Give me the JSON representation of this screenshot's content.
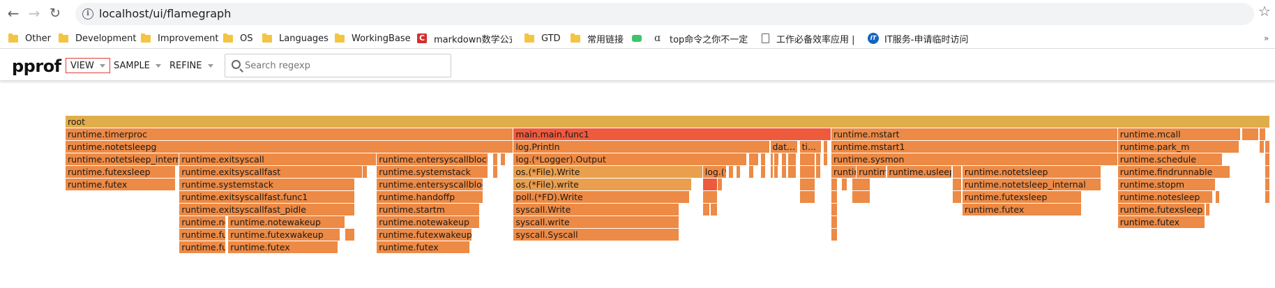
{
  "browser": {
    "url": "localhost/ui/flamegraph",
    "bookmarks": [
      {
        "label": "Other",
        "icon": "folder-icon"
      },
      {
        "label": "Development",
        "icon": "folder-icon"
      },
      {
        "label": "Improvement",
        "icon": "folder-icon"
      },
      {
        "label": "OS",
        "icon": "folder-icon"
      },
      {
        "label": "Languages",
        "icon": "folder-icon"
      },
      {
        "label": "WorkingBase",
        "icon": "folder-icon"
      },
      {
        "label": "markdown数学公式",
        "icon": "c-logo-icon"
      },
      {
        "label": "GTD",
        "icon": "folder-icon"
      },
      {
        "label": "常用链接",
        "icon": "folder-icon"
      },
      {
        "label": "",
        "icon": "green-chat-icon"
      },
      {
        "label": "top命令之你不一定",
        "icon": "a-logo-icon"
      },
      {
        "label": "工作必备效率应用 | ",
        "icon": "document-icon"
      },
      {
        "label": "IT服务-申请临时访问",
        "icon": "it-logo-icon"
      }
    ]
  },
  "header": {
    "title": "pprof",
    "menus": [
      "VIEW",
      "SAMPLE",
      "REFINE"
    ],
    "search_placeholder": "Search regexp"
  },
  "colors": {
    "root": "#e0ad4b",
    "hot": "#ee5a3c",
    "warm1": "#ed8a45",
    "warm2": "#ee9448",
    "warm3": "#e99f4e"
  },
  "flamegraph": {
    "frames": [
      {
        "name": "root",
        "level": 0,
        "start": 0.0,
        "end": 1.0,
        "color": "#e0ad4b"
      },
      {
        "name": "runtime.timerproc",
        "level": 1,
        "start": 0.0,
        "end": 0.3717,
        "color": "#ed8a45"
      },
      {
        "name": "runtime.notetsleepg",
        "level": 2,
        "start": 0.0,
        "end": 0.3717,
        "color": "#ed8a45"
      },
      {
        "name": "runtime.notetsleep_internal",
        "level": 3,
        "start": 0.0,
        "end": 0.0946,
        "color": "#ed8a45"
      },
      {
        "name": "runtime.futexsleep",
        "level": 4,
        "start": 0.0,
        "end": 0.0912,
        "color": "#ed8a45"
      },
      {
        "name": "runtime.futex",
        "level": 5,
        "start": 0.0,
        "end": 0.0912,
        "color": "#ed8a45"
      },
      {
        "name": "runtime.exitsyscall",
        "level": 3,
        "start": 0.0946,
        "end": 0.2584,
        "color": "#ed8a45"
      },
      {
        "name": "runtime.exitsyscallfast",
        "level": 4,
        "start": 0.0946,
        "end": 0.2466,
        "color": "#ed8a45"
      },
      {
        "name": "",
        "level": 4,
        "start": 0.2466,
        "end": 0.2507,
        "color": "#ed8a45"
      },
      {
        "name": "runtime.systemstack",
        "level": 5,
        "start": 0.0946,
        "end": 0.2405,
        "color": "#ed8a45"
      },
      {
        "name": "runtime.exitsyscallfast.func1",
        "level": 6,
        "start": 0.0946,
        "end": 0.2405,
        "color": "#ed8a45"
      },
      {
        "name": "runtime.exitsyscallfast_pidle",
        "level": 7,
        "start": 0.0946,
        "end": 0.2405,
        "color": "#ed8a45"
      },
      {
        "name": "runtime.notewakeup",
        "level": 8,
        "start": 0.0946,
        "end": 0.1331,
        "color": "#ed8a45"
      },
      {
        "name": "runtime.futexwakeup",
        "level": 9,
        "start": 0.0946,
        "end": 0.1331,
        "color": "#ed8a45"
      },
      {
        "name": "runtime.futex",
        "level": 10,
        "start": 0.0946,
        "end": 0.1331,
        "color": "#ed8a45"
      },
      {
        "name": "runtime.notewakeup",
        "level": 8,
        "start": 0.1351,
        "end": 0.2324,
        "color": "#ed8a45"
      },
      {
        "name": "runtime.futexwakeup",
        "level": 9,
        "start": 0.1351,
        "end": 0.2284,
        "color": "#ed8a45"
      },
      {
        "name": "",
        "level": 9,
        "start": 0.2324,
        "end": 0.2405,
        "color": "#ed8a45"
      },
      {
        "name": "runtime.futex",
        "level": 10,
        "start": 0.1351,
        "end": 0.2264,
        "color": "#ed8a45"
      },
      {
        "name": "runtime.entersyscallblock",
        "level": 3,
        "start": 0.2584,
        "end": 0.3507,
        "color": "#ed8a45"
      },
      {
        "name": "runtime.systemstack",
        "level": 4,
        "start": 0.2584,
        "end": 0.3507,
        "color": "#ed8a45"
      },
      {
        "name": "runtime.entersyscallblock_handoff",
        "level": 5,
        "start": 0.2584,
        "end": 0.3469,
        "color": "#ed8a45"
      },
      {
        "name": "runtime.handoffp",
        "level": 6,
        "start": 0.2584,
        "end": 0.3469,
        "color": "#ed8a45"
      },
      {
        "name": "runtime.startm",
        "level": 7,
        "start": 0.2584,
        "end": 0.3439,
        "color": "#ed8a45"
      },
      {
        "name": "runtime.notewakeup",
        "level": 8,
        "start": 0.2584,
        "end": 0.3439,
        "color": "#ed8a45"
      },
      {
        "name": "runtime.futexwakeup",
        "level": 9,
        "start": 0.2584,
        "end": 0.3378,
        "color": "#ed8a45"
      },
      {
        "name": "runtime.futex",
        "level": 10,
        "start": 0.2584,
        "end": 0.3358,
        "color": "#ed8a45"
      },
      {
        "name": "",
        "level": 3,
        "start": 0.3547,
        "end": 0.3588,
        "color": "#ed8a45"
      },
      {
        "name": "",
        "level": 4,
        "start": 0.3547,
        "end": 0.3588,
        "color": "#ed8a45"
      },
      {
        "name": "",
        "level": 3,
        "start": 0.3615,
        "end": 0.3656,
        "color": "#ed8a45"
      },
      {
        "name": "",
        "level": 2,
        "start": 0.3628,
        "end": 0.3669,
        "color": "#ed8a45"
      },
      {
        "name": "main.main.func1",
        "level": 1,
        "start": 0.372,
        "end": 0.6358,
        "color": "#ee5a3c"
      },
      {
        "name": "log.Println",
        "level": 2,
        "start": 0.372,
        "end": 0.5851,
        "color": "#ed8a45"
      },
      {
        "name": "log.(*Logger).Output",
        "level": 3,
        "start": 0.372,
        "end": 0.5655,
        "color": "#ed8a45"
      },
      {
        "name": "os.(*File).Write",
        "level": 4,
        "start": 0.372,
        "end": 0.5291,
        "color": "#e99f4e"
      },
      {
        "name": "os.(*File).write",
        "level": 5,
        "start": 0.372,
        "end": 0.5203,
        "color": "#e99f4e"
      },
      {
        "name": "poll.(*FD).Write",
        "level": 6,
        "start": 0.372,
        "end": 0.5182,
        "color": "#ed8a45"
      },
      {
        "name": "syscall.Write",
        "level": 7,
        "start": 0.372,
        "end": 0.5095,
        "color": "#ed8a45"
      },
      {
        "name": "syscall.write",
        "level": 8,
        "start": 0.372,
        "end": 0.5095,
        "color": "#ed8a45"
      },
      {
        "name": "syscall.Syscall",
        "level": 9,
        "start": 0.372,
        "end": 0.5095,
        "color": "#ed8a45"
      },
      {
        "name": "log.(*Logger).formatHeader",
        "level": 4,
        "start": 0.5291,
        "end": 0.5487,
        "color": "#ed8a45"
      },
      {
        "name": "",
        "level": 4,
        "start": 0.5507,
        "end": 0.5547,
        "color": "#ed8a45"
      },
      {
        "name": "",
        "level": 4,
        "start": 0.5568,
        "end": 0.5608,
        "color": "#ed8a45"
      },
      {
        "name": "",
        "level": 5,
        "start": 0.5291,
        "end": 0.5412,
        "color": "#ee5a3c"
      },
      {
        "name": "",
        "level": 5,
        "start": 0.5412,
        "end": 0.5453,
        "color": "#ed8a45"
      },
      {
        "name": "",
        "level": 6,
        "start": 0.5291,
        "end": 0.5412,
        "color": "#ed8a45"
      },
      {
        "name": "",
        "level": 7,
        "start": 0.5291,
        "end": 0.5351,
        "color": "#ed8a45"
      },
      {
        "name": "",
        "level": 7,
        "start": 0.5358,
        "end": 0.5412,
        "color": "#ed8a45"
      },
      {
        "name": "",
        "level": 3,
        "start": 0.5676,
        "end": 0.5757,
        "color": "#ed8a45"
      },
      {
        "name": "",
        "level": 4,
        "start": 0.5676,
        "end": 0.5716,
        "color": "#ed8a45"
      },
      {
        "name": "",
        "level": 3,
        "start": 0.577,
        "end": 0.5811,
        "color": "#ed8a45"
      },
      {
        "name": "",
        "level": 4,
        "start": 0.577,
        "end": 0.5811,
        "color": "#ed8a45"
      },
      {
        "name": "dat...",
        "level": 2,
        "start": 0.5851,
        "end": 0.6081,
        "color": "#ed8a45"
      },
      {
        "name": "",
        "level": 3,
        "start": 0.5851,
        "end": 0.5878,
        "color": "#ed8a45"
      },
      {
        "name": "",
        "level": 3,
        "start": 0.5885,
        "end": 0.5926,
        "color": "#ed8a45"
      },
      {
        "name": "",
        "level": 3,
        "start": 0.5946,
        "end": 0.5986,
        "color": "#ed8a45"
      },
      {
        "name": "",
        "level": 3,
        "start": 0.6,
        "end": 0.6068,
        "color": "#ed8a45"
      },
      {
        "name": "",
        "level": 4,
        "start": 0.5851,
        "end": 0.5878,
        "color": "#ed8a45"
      },
      {
        "name": "",
        "level": 4,
        "start": 0.5885,
        "end": 0.5919,
        "color": "#ed8a45"
      },
      {
        "name": "",
        "level": 4,
        "start": 0.5946,
        "end": 0.5986,
        "color": "#ed8a45"
      },
      {
        "name": "",
        "level": 4,
        "start": 0.6,
        "end": 0.6068,
        "color": "#ed8a45"
      },
      {
        "name": "ti...",
        "level": 2,
        "start": 0.6095,
        "end": 0.6277,
        "color": "#ed8a45"
      },
      {
        "name": "",
        "level": 3,
        "start": 0.6095,
        "end": 0.6223,
        "color": "#ed8a45"
      },
      {
        "name": "",
        "level": 3,
        "start": 0.623,
        "end": 0.627,
        "color": "#ed8a45"
      },
      {
        "name": "",
        "level": 4,
        "start": 0.6095,
        "end": 0.6223,
        "color": "#ed8a45"
      },
      {
        "name": "",
        "level": 4,
        "start": 0.623,
        "end": 0.627,
        "color": "#ed8a45"
      },
      {
        "name": "",
        "level": 5,
        "start": 0.6095,
        "end": 0.6223,
        "color": "#ed8a45"
      },
      {
        "name": "",
        "level": 6,
        "start": 0.6095,
        "end": 0.6223,
        "color": "#ed8a45"
      },
      {
        "name": "",
        "level": 2,
        "start": 0.6291,
        "end": 0.6331,
        "color": "#ed8a45"
      },
      {
        "name": "",
        "level": 3,
        "start": 0.6291,
        "end": 0.6331,
        "color": "#ed8a45"
      },
      {
        "name": "runtime.mstart",
        "level": 1,
        "start": 0.6358,
        "end": 0.8736,
        "color": "#ed8a45"
      },
      {
        "name": "runtime.mstart1",
        "level": 2,
        "start": 0.6358,
        "end": 0.8736,
        "color": "#ed8a45"
      },
      {
        "name": "runtime.sysmon",
        "level": 3,
        "start": 0.6358,
        "end": 0.8736,
        "color": "#ed8a45"
      },
      {
        "name": "runtime.usleep",
        "level": 4,
        "start": 0.6358,
        "end": 0.6568,
        "color": "#ed8a45"
      },
      {
        "name": "runtime.nanotime",
        "level": 4,
        "start": 0.6568,
        "end": 0.6818,
        "color": "#ed8a45"
      },
      {
        "name": "runtime.usleep",
        "level": 4,
        "start": 0.6818,
        "end": 0.7358,
        "color": "#ed8a45"
      },
      {
        "name": "",
        "level": 4,
        "start": 0.7365,
        "end": 0.7439,
        "color": "#ed8a45"
      },
      {
        "name": "runtime.notetsleep",
        "level": 4,
        "start": 0.7446,
        "end": 0.8601,
        "color": "#ed8a45"
      },
      {
        "name": "runtime.notetsleep_internal",
        "level": 5,
        "start": 0.7446,
        "end": 0.8601,
        "color": "#ed8a45"
      },
      {
        "name": "runtime.futexsleep",
        "level": 6,
        "start": 0.7446,
        "end": 0.8439,
        "color": "#ed8a45"
      },
      {
        "name": "runtime.futex",
        "level": 7,
        "start": 0.7446,
        "end": 0.8439,
        "color": "#ed8a45"
      },
      {
        "name": "",
        "level": 5,
        "start": 0.6358,
        "end": 0.6412,
        "color": "#ed8a45"
      },
      {
        "name": "",
        "level": 5,
        "start": 0.6446,
        "end": 0.6493,
        "color": "#ed8a45"
      },
      {
        "name": "",
        "level": 5,
        "start": 0.6534,
        "end": 0.6682,
        "color": "#ed8a45"
      },
      {
        "name": "",
        "level": 5,
        "start": 0.7365,
        "end": 0.7439,
        "color": "#ed8a45"
      },
      {
        "name": "",
        "level": 6,
        "start": 0.6358,
        "end": 0.6412,
        "color": "#ed8a45"
      },
      {
        "name": "",
        "level": 6,
        "start": 0.6534,
        "end": 0.6682,
        "color": "#ed8a45"
      },
      {
        "name": "",
        "level": 6,
        "start": 0.7365,
        "end": 0.7439,
        "color": "#ed8a45"
      },
      {
        "name": "",
        "level": 7,
        "start": 0.6358,
        "end": 0.6412,
        "color": "#ed8a45"
      },
      {
        "name": "",
        "level": 8,
        "start": 0.6358,
        "end": 0.6412,
        "color": "#ed8a45"
      },
      {
        "name": "",
        "level": 9,
        "start": 0.6358,
        "end": 0.6412,
        "color": "#ed8a45"
      },
      {
        "name": "runtime.mcall",
        "level": 1,
        "start": 0.8736,
        "end": 0.9757,
        "color": "#ed8a45"
      },
      {
        "name": "runtime.park_m",
        "level": 2,
        "start": 0.8736,
        "end": 0.9743,
        "color": "#ed8a45"
      },
      {
        "name": "runtime.schedule",
        "level": 3,
        "start": 0.8736,
        "end": 0.9608,
        "color": "#ed8a45"
      },
      {
        "name": "runtime.findrunnable",
        "level": 4,
        "start": 0.8736,
        "end": 0.9669,
        "color": "#ed8a45"
      },
      {
        "name": "runtime.stopm",
        "level": 5,
        "start": 0.8736,
        "end": 0.9547,
        "color": "#ed8a45"
      },
      {
        "name": "runtime.notesleep",
        "level": 6,
        "start": 0.8736,
        "end": 0.9527,
        "color": "#ed8a45"
      },
      {
        "name": "runtime.futexsleep",
        "level": 7,
        "start": 0.8736,
        "end": 0.9459,
        "color": "#ed8a45"
      },
      {
        "name": "runtime.futex",
        "level": 8,
        "start": 0.8736,
        "end": 0.9459,
        "color": "#ed8a45"
      },
      {
        "name": "",
        "level": 6,
        "start": 0.9547,
        "end": 0.9581,
        "color": "#ed8a45"
      },
      {
        "name": "",
        "level": 7,
        "start": 0.9466,
        "end": 0.95,
        "color": "#ed8a45"
      },
      {
        "name": "",
        "level": 1,
        "start": 0.977,
        "end": 0.9905,
        "color": "#ed8a45"
      },
      {
        "name": "",
        "level": 1,
        "start": 0.9912,
        "end": 0.9966,
        "color": "#ed8a45"
      },
      {
        "name": "",
        "level": 2,
        "start": 0.9912,
        "end": 0.9953,
        "color": "#ed8a45"
      },
      {
        "name": "",
        "level": 2,
        "start": 0.996,
        "end": 1.0,
        "color": "#ed8a45"
      },
      {
        "name": "",
        "level": 3,
        "start": 0.996,
        "end": 1.0,
        "color": "#ed8a45"
      },
      {
        "name": "",
        "level": 4,
        "start": 0.996,
        "end": 1.0,
        "color": "#ed8a45"
      },
      {
        "name": "",
        "level": 5,
        "start": 0.996,
        "end": 1.0,
        "color": "#ed8a45"
      },
      {
        "name": "",
        "level": 6,
        "start": 0.996,
        "end": 1.0,
        "color": "#ed8a45"
      }
    ]
  }
}
